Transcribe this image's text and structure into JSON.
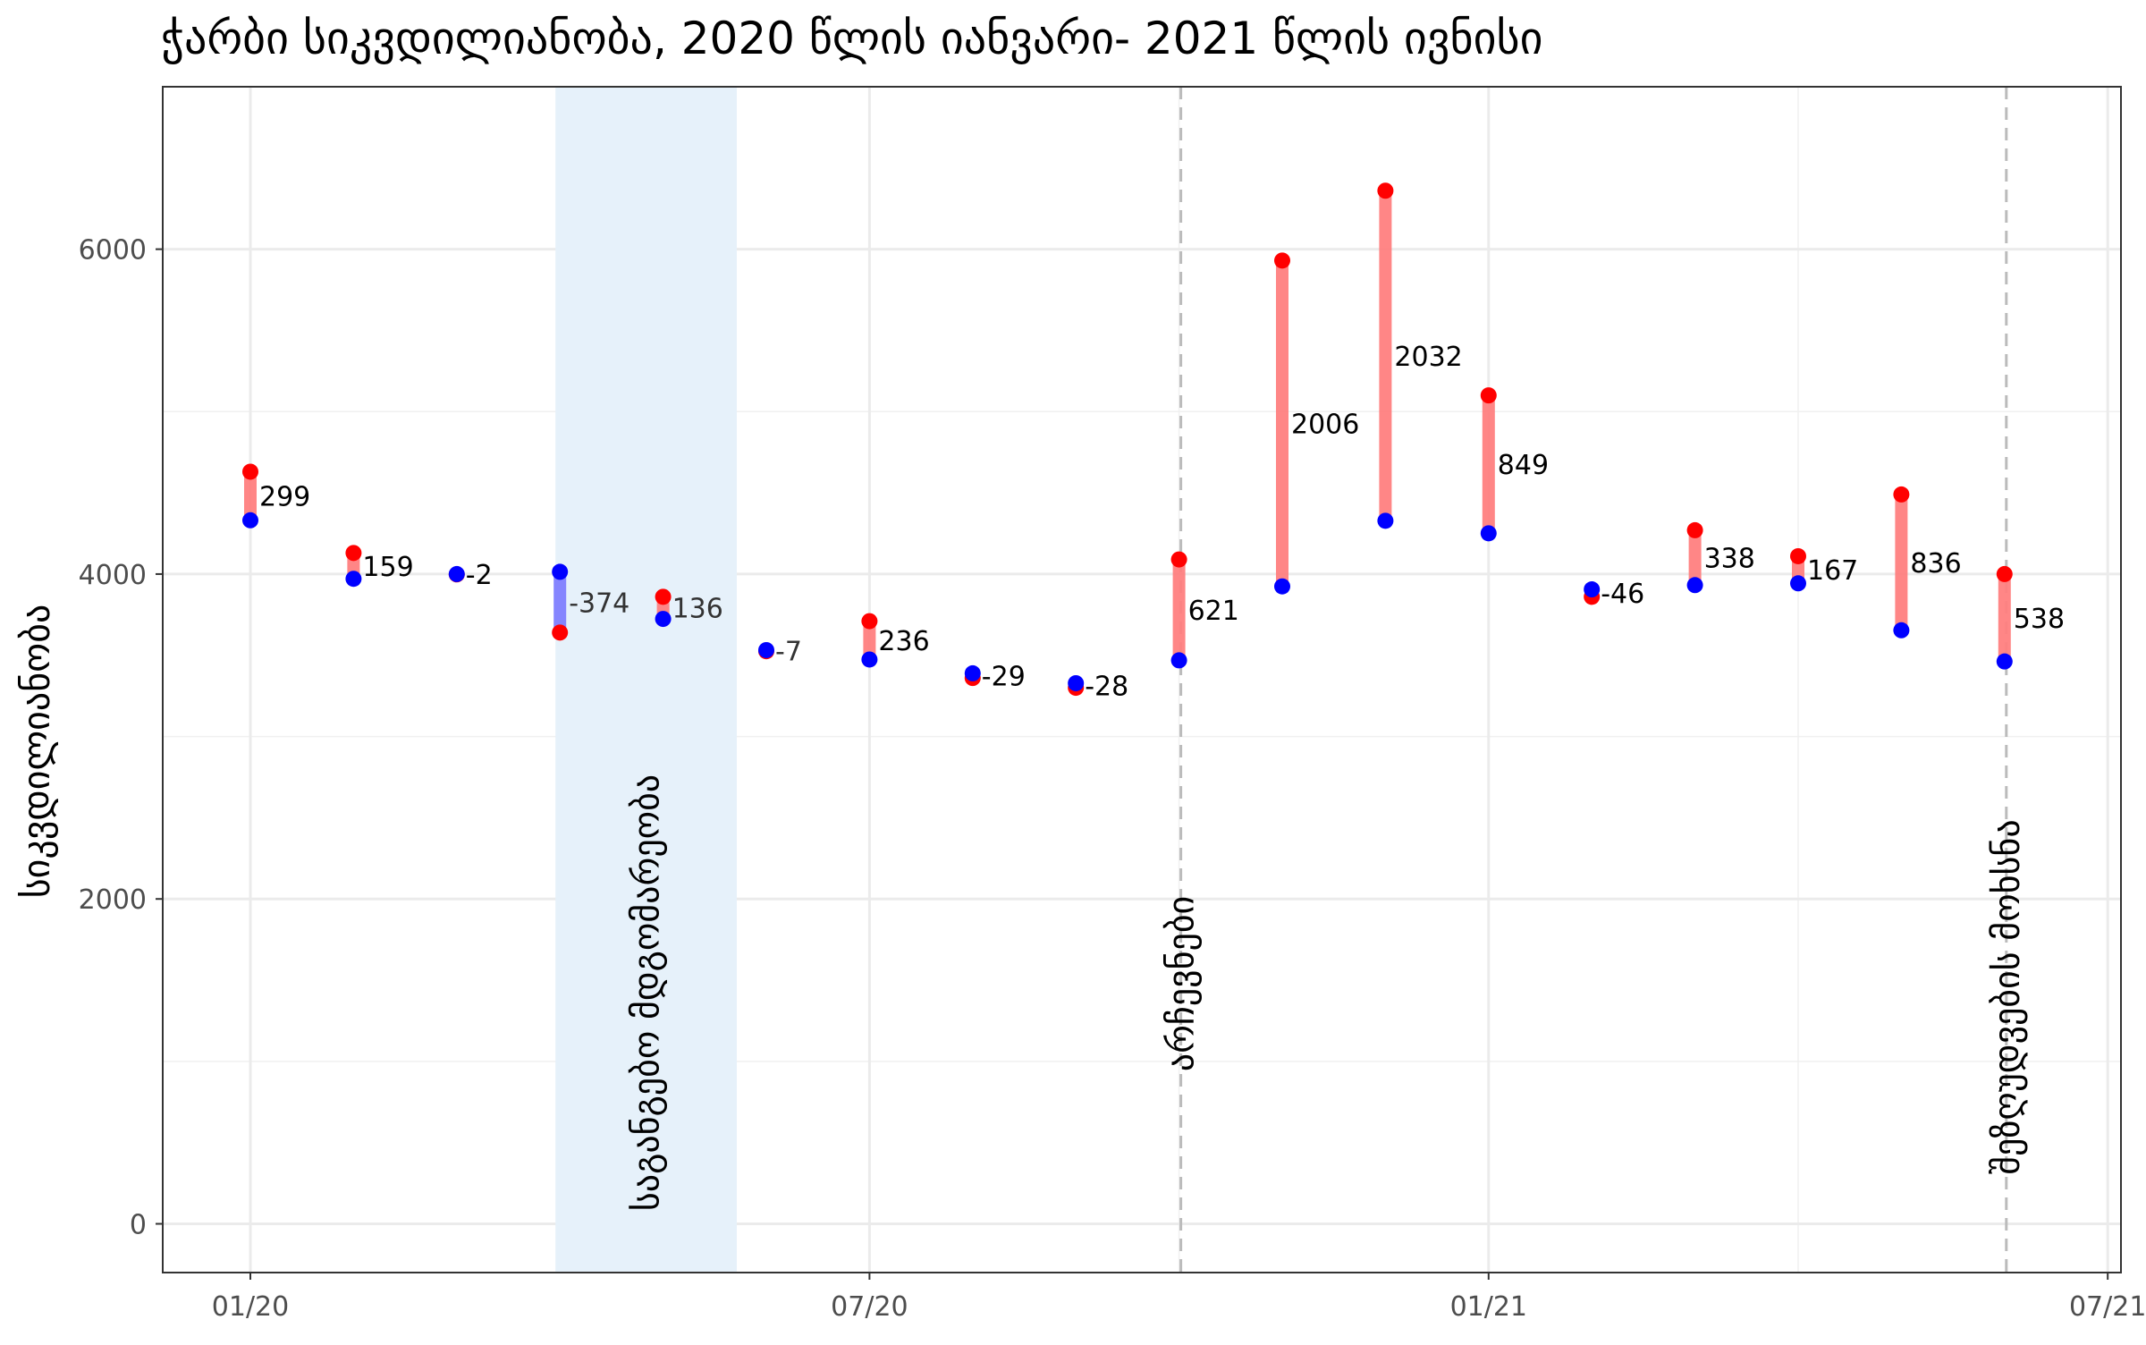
{
  "chart_data": {
    "type": "scatter",
    "title": "ჭარბი სიკვდილიანობა, 2020 წლის იანვარი- 2021 წლის ივნისი",
    "ylabel": "სიკვდილიანობა",
    "xlabel": "",
    "ylim": [
      -300,
      7000
    ],
    "yticks": [
      0,
      2000,
      4000,
      6000
    ],
    "xticks": [
      "01/20",
      "07/20",
      "01/21",
      "07/21"
    ],
    "grid": true,
    "colors": {
      "observed": "#ff0000",
      "expected": "#0000ff",
      "excess_positive": "#ff8080",
      "excess_negative": "#8080ff",
      "band": "#e6f1fa",
      "dashed_line": "#bbbbbb"
    },
    "months": [
      "01/20",
      "02/20",
      "03/20",
      "04/20",
      "05/20",
      "06/20",
      "07/20",
      "08/20",
      "09/20",
      "10/20",
      "11/20",
      "12/20",
      "01/21",
      "02/21",
      "03/21",
      "04/21",
      "05/21",
      "06/21"
    ],
    "series": [
      {
        "values": [
          4630,
          4130,
          3998,
          3640,
          3860,
          3525,
          3710,
          3360,
          3300,
          4090,
          5930,
          6360,
          5100,
          3860,
          4270,
          4110,
          4490,
          4000
        ]
      },
      {
        "values": [
          4331,
          3971,
          4000,
          4014,
          3724,
          3532,
          3474,
          3389,
          3328,
          3469,
          3924,
          4328,
          4251,
          3906,
          3932,
          3943,
          3654,
          3462
        ]
      }
    ],
    "excess_labels": [
      "299",
      "159",
      "-2",
      "-374",
      "136",
      "-7",
      "236",
      "-29",
      "-28",
      "621",
      "2006",
      "2032",
      "849",
      "-46",
      "338",
      "167",
      "836",
      "538"
    ],
    "band": {
      "start_month": "04/20",
      "end_month": "06/20",
      "label": "საგანგებო მდგომარეობა"
    },
    "vlines": [
      {
        "month": "10/20",
        "label": "არჩევნები"
      },
      {
        "month": "06/21",
        "label": "შეზღუდვების მოხსნა"
      }
    ]
  }
}
